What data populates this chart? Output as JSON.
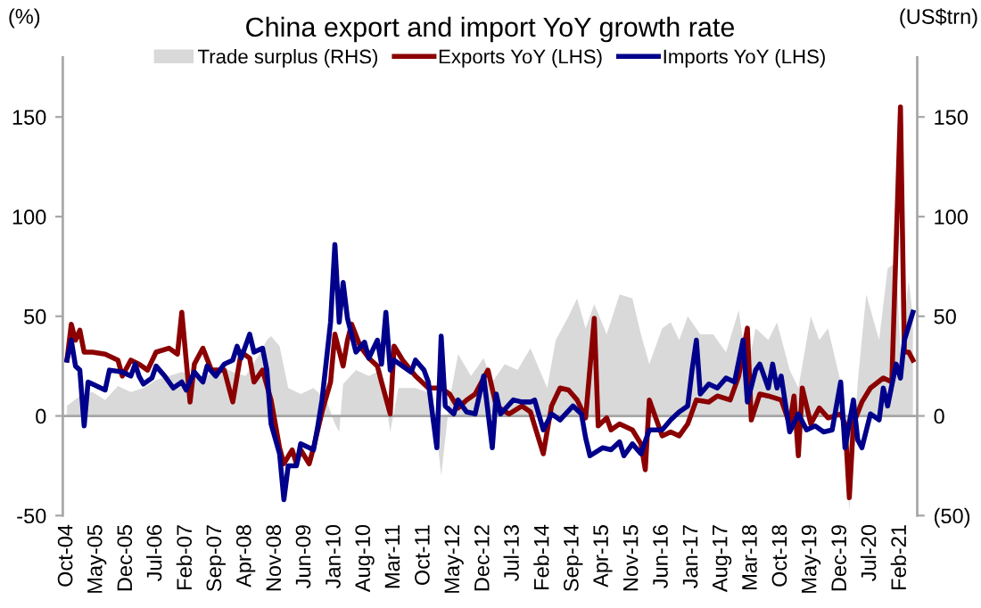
{
  "chart_data": {
    "type": "line",
    "title": "China export and import YoY growth rate",
    "ylabel": "(%)",
    "y2label": "(US$trn)",
    "legend": "top",
    "xlim": [
      "2004-09",
      "2021-06"
    ],
    "xticks": [
      {
        "value": "2004-10",
        "label": "Oct-04"
      },
      {
        "value": "2005-05",
        "label": "May-05"
      },
      {
        "value": "2005-12",
        "label": "Dec-05"
      },
      {
        "value": "2006-07",
        "label": "Jul-06"
      },
      {
        "value": "2007-02",
        "label": "Feb-07"
      },
      {
        "value": "2007-09",
        "label": "Sep-07"
      },
      {
        "value": "2008-04",
        "label": "Apr-08"
      },
      {
        "value": "2008-11",
        "label": "Nov-08"
      },
      {
        "value": "2009-06",
        "label": "Jun-09"
      },
      {
        "value": "2010-01",
        "label": "Jan-10"
      },
      {
        "value": "2010-08",
        "label": "Aug-10"
      },
      {
        "value": "2011-03",
        "label": "Mar-11"
      },
      {
        "value": "2011-10",
        "label": "Oct-11"
      },
      {
        "value": "2012-05",
        "label": "May-12"
      },
      {
        "value": "2012-12",
        "label": "Dec-12"
      },
      {
        "value": "2013-07",
        "label": "Jul-13"
      },
      {
        "value": "2014-02",
        "label": "Feb-14"
      },
      {
        "value": "2014-09",
        "label": "Sep-14"
      },
      {
        "value": "2015-04",
        "label": "Apr-15"
      },
      {
        "value": "2015-11",
        "label": "Nov-15"
      },
      {
        "value": "2016-06",
        "label": "Jun-16"
      },
      {
        "value": "2017-01",
        "label": "Jan-17"
      },
      {
        "value": "2017-08",
        "label": "Aug-17"
      },
      {
        "value": "2018-03",
        "label": "Mar-18"
      },
      {
        "value": "2018-10",
        "label": "Oct-18"
      },
      {
        "value": "2019-05",
        "label": "May-19"
      },
      {
        "value": "2019-12",
        "label": "Dec-19"
      },
      {
        "value": "2020-07",
        "label": "Jul-20"
      },
      {
        "value": "2021-02",
        "label": "Feb-21"
      }
    ],
    "ylim": [
      -50,
      180
    ],
    "yticks": [
      -50,
      0,
      50,
      100,
      150
    ],
    "y2lim": [
      -50,
      180
    ],
    "y2ticks": [
      {
        "value": -50,
        "label": "(50)"
      },
      0,
      50,
      100,
      150
    ],
    "ref_lines": [
      {
        "axis": "y",
        "value": 0,
        "color": "#a6a6a6"
      }
    ],
    "series": [
      {
        "name": "Trade surplus (RHS)",
        "type": "area",
        "axis": "y2",
        "color": "#d9d9d9",
        "x": [
          "2004-10",
          "2005-01",
          "2005-04",
          "2005-07",
          "2005-10",
          "2006-01",
          "2006-04",
          "2006-07",
          "2006-10",
          "2007-01",
          "2007-04",
          "2007-07",
          "2007-10",
          "2008-01",
          "2008-04",
          "2008-07",
          "2008-09",
          "2008-10",
          "2008-12",
          "2009-02",
          "2009-05",
          "2009-08",
          "2009-11",
          "2010-01",
          "2010-02",
          "2010-03",
          "2010-06",
          "2010-09",
          "2010-12",
          "2011-02",
          "2011-04",
          "2011-08",
          "2011-12",
          "2012-02",
          "2012-04",
          "2012-06",
          "2012-09",
          "2012-12",
          "2013-02",
          "2013-05",
          "2013-08",
          "2013-11",
          "2014-03",
          "2014-05",
          "2014-08",
          "2014-10",
          "2014-12",
          "2015-02",
          "2015-05",
          "2015-08",
          "2015-11",
          "2016-01",
          "2016-03",
          "2016-06",
          "2016-08",
          "2016-10",
          "2016-12",
          "2017-03",
          "2017-06",
          "2017-09",
          "2017-12",
          "2018-02",
          "2018-04",
          "2018-07",
          "2018-09",
          "2018-12",
          "2019-02",
          "2019-05",
          "2019-07",
          "2019-09",
          "2019-12",
          "2020-02",
          "2020-04",
          "2020-06",
          "2020-09",
          "2020-11",
          "2021-01",
          "2021-02",
          "2021-04",
          "2021-05"
        ],
        "values": [
          5,
          10,
          12,
          8,
          15,
          12,
          14,
          18,
          20,
          22,
          20,
          20,
          25,
          22,
          20,
          30,
          38,
          40,
          35,
          14,
          11,
          14,
          8,
          -4,
          -8,
          16,
          23,
          20,
          23,
          -8,
          14,
          14,
          11,
          -30,
          8,
          31,
          20,
          29,
          17,
          26,
          23,
          34,
          14,
          38,
          50,
          59,
          44,
          56,
          41,
          61,
          59,
          41,
          26,
          44,
          47,
          38,
          50,
          41,
          41,
          32,
          53,
          23,
          44,
          38,
          47,
          23,
          14,
          50,
          38,
          44,
          17,
          -48,
          17,
          61,
          38,
          74,
          77,
          32,
          68,
          50
        ]
      },
      {
        "name": "Exports YoY (LHS)",
        "color": "#8b0000",
        "x": [
          "2004-10",
          "2004-11",
          "2004-12",
          "2005-01",
          "2005-02",
          "2005-04",
          "2005-07",
          "2005-10",
          "2005-11",
          "2006-01",
          "2006-03",
          "2006-05",
          "2006-07",
          "2006-10",
          "2006-12",
          "2007-01",
          "2007-03",
          "2007-04",
          "2007-06",
          "2007-08",
          "2007-11",
          "2008-01",
          "2008-03",
          "2008-05",
          "2008-06",
          "2008-08",
          "2008-10",
          "2008-12",
          "2009-01",
          "2009-03",
          "2009-04",
          "2009-05",
          "2009-07",
          "2009-08",
          "2009-10",
          "2009-12",
          "2010-01",
          "2010-03",
          "2010-04",
          "2010-05",
          "2010-07",
          "2010-09",
          "2010-11",
          "2010-12",
          "2011-02",
          "2011-03",
          "2011-05",
          "2011-08",
          "2011-11",
          "2012-02",
          "2012-04",
          "2012-06",
          "2012-08",
          "2012-10",
          "2013-01",
          "2013-03",
          "2013-06",
          "2013-09",
          "2013-11",
          "2014-02",
          "2014-04",
          "2014-06",
          "2014-08",
          "2014-10",
          "2014-12",
          "2015-02",
          "2015-03",
          "2015-05",
          "2015-06",
          "2015-08",
          "2015-11",
          "2016-01",
          "2016-02",
          "2016-03",
          "2016-06",
          "2016-08",
          "2016-10",
          "2016-12",
          "2017-02",
          "2017-05",
          "2017-07",
          "2017-10",
          "2017-12",
          "2018-02",
          "2018-03",
          "2018-05",
          "2018-07",
          "2018-10",
          "2018-12",
          "2019-01",
          "2019-02",
          "2019-03",
          "2019-05",
          "2019-07",
          "2019-09",
          "2019-12",
          "2020-01",
          "2020-02",
          "2020-03",
          "2020-05",
          "2020-07",
          "2020-10",
          "2020-12",
          "2021-02",
          "2021-03",
          "2021-04",
          "2021-05"
        ],
        "values": [
          28,
          46,
          38,
          43,
          32,
          32,
          31,
          28,
          20,
          28,
          26,
          23,
          32,
          34,
          31,
          52,
          7,
          26,
          34,
          23,
          23,
          7,
          32,
          29,
          17,
          23,
          8,
          -16,
          -24,
          -17,
          -24,
          -17,
          -24,
          -16,
          2,
          17,
          41,
          25,
          38,
          46,
          35,
          29,
          25,
          17,
          1,
          35,
          28,
          20,
          14,
          14,
          11,
          4,
          8,
          11,
          23,
          5,
          1,
          5,
          2,
          -19,
          5,
          14,
          13,
          8,
          -1,
          49,
          -5,
          -1,
          -7,
          -4,
          -7,
          -14,
          -27,
          8,
          -10,
          -8,
          -10,
          -4,
          8,
          7,
          10,
          8,
          20,
          44,
          -2,
          11,
          10,
          8,
          -4,
          10,
          -20,
          14,
          -4,
          4,
          -1,
          1,
          -4,
          -41,
          -4,
          7,
          14,
          19,
          17,
          155,
          32,
          32,
          28
        ]
      },
      {
        "name": "Imports YoY (LHS)",
        "color": "#00008b",
        "x": [
          "2004-10",
          "2004-11",
          "2004-12",
          "2005-01",
          "2005-02",
          "2005-03",
          "2005-04",
          "2005-07",
          "2005-08",
          "2005-11",
          "2006-01",
          "2006-02",
          "2006-03",
          "2006-04",
          "2006-06",
          "2006-07",
          "2006-09",
          "2006-11",
          "2007-01",
          "2007-02",
          "2007-04",
          "2007-06",
          "2007-07",
          "2007-09",
          "2007-11",
          "2008-01",
          "2008-02",
          "2008-03",
          "2008-05",
          "2008-06",
          "2008-08",
          "2008-09",
          "2008-10",
          "2008-12",
          "2009-01",
          "2009-02",
          "2009-04",
          "2009-05",
          "2009-08",
          "2009-09",
          "2009-10",
          "2009-12",
          "2010-01",
          "2010-02",
          "2010-03",
          "2010-04",
          "2010-06",
          "2010-08",
          "2010-09",
          "2010-11",
          "2010-12",
          "2011-01",
          "2011-02",
          "2011-03",
          "2011-05",
          "2011-07",
          "2011-08",
          "2011-10",
          "2011-11",
          "2012-01",
          "2012-02",
          "2012-03",
          "2012-05",
          "2012-06",
          "2012-08",
          "2012-10",
          "2012-12",
          "2013-02",
          "2013-03",
          "2013-04",
          "2013-07",
          "2013-09",
          "2013-11",
          "2013-12",
          "2014-02",
          "2014-04",
          "2014-06",
          "2014-09",
          "2014-11",
          "2014-12",
          "2015-01",
          "2015-04",
          "2015-06",
          "2015-08",
          "2015-09",
          "2015-11",
          "2016-01",
          "2016-03",
          "2016-06",
          "2016-08",
          "2016-10",
          "2016-12",
          "2017-01",
          "2017-02",
          "2017-03",
          "2017-05",
          "2017-07",
          "2017-09",
          "2017-11",
          "2018-01",
          "2018-02",
          "2018-04",
          "2018-05",
          "2018-07",
          "2018-08",
          "2018-09",
          "2018-10",
          "2018-12",
          "2019-02",
          "2019-04",
          "2019-06",
          "2019-08",
          "2019-10",
          "2019-12",
          "2020-01",
          "2020-03",
          "2020-04",
          "2020-05",
          "2020-07",
          "2020-09",
          "2020-10",
          "2020-11",
          "2021-01",
          "2021-02",
          "2021-03",
          "2021-05"
        ],
        "values": [
          28,
          38,
          25,
          23,
          -5,
          17,
          16,
          13,
          23,
          22,
          20,
          26,
          20,
          16,
          19,
          25,
          20,
          14,
          17,
          13,
          22,
          17,
          25,
          20,
          26,
          28,
          35,
          29,
          41,
          32,
          34,
          23,
          -4,
          -19,
          -42,
          -25,
          -25,
          -14,
          -17,
          -5,
          8,
          47,
          86,
          47,
          67,
          49,
          32,
          37,
          29,
          38,
          26,
          52,
          23,
          28,
          25,
          22,
          28,
          23,
          17,
          -16,
          40,
          5,
          1,
          8,
          2,
          1,
          20,
          -16,
          11,
          1,
          8,
          7,
          7,
          8,
          -7,
          1,
          -2,
          5,
          1,
          -11,
          -20,
          -16,
          -17,
          -13,
          -20,
          -14,
          -19,
          -7,
          -7,
          -2,
          2,
          5,
          23,
          38,
          11,
          16,
          14,
          19,
          17,
          38,
          7,
          23,
          26,
          14,
          26,
          14,
          20,
          -8,
          1,
          -7,
          -5,
          -8,
          -7,
          17,
          -16,
          8,
          -12,
          -16,
          1,
          -2,
          14,
          5,
          26,
          19,
          38,
          52
        ]
      }
    ]
  }
}
